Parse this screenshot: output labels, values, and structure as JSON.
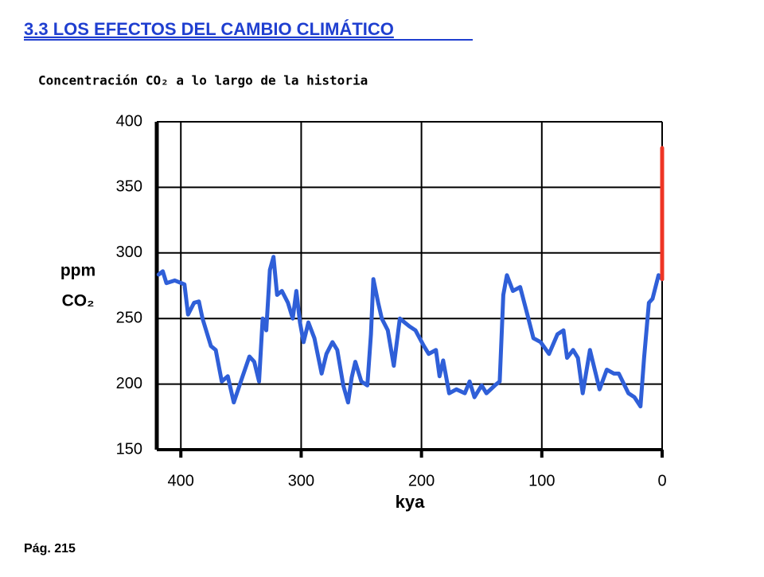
{
  "heading": "3.3 LOS EFECTOS DEL CAMBIO CLIMÁTICO",
  "page_label": "Pág. 215",
  "chart_data": {
    "type": "line",
    "title": "Concentración CO₂ a lo largo de la historia",
    "ylabel": [
      "ppm",
      "CO₂"
    ],
    "xlabel": "kya",
    "xlim": [
      420,
      0
    ],
    "ylim": [
      150,
      400
    ],
    "xticks": [
      400,
      300,
      200,
      100,
      0
    ],
    "yticks": [
      150,
      200,
      250,
      300,
      350,
      400
    ],
    "grid": true,
    "series": [
      {
        "color": "#2f5fd8",
        "x": [
          418.5,
          415,
          412,
          405,
          397,
          394,
          389,
          385,
          382,
          375,
          371,
          366,
          361,
          356,
          349,
          343,
          339,
          335,
          332,
          329,
          326,
          323,
          320,
          316,
          311,
          307,
          304,
          301,
          298,
          294,
          289,
          283,
          279,
          274,
          270,
          265,
          261,
          258,
          255,
          250,
          245,
          242,
          240,
          236,
          233,
          228,
          223,
          218,
          214,
          210,
          205,
          198,
          194,
          188,
          185,
          182,
          177,
          171,
          164,
          160,
          156,
          150,
          146,
          139,
          135,
          132,
          129,
          124,
          118,
          112,
          107,
          101,
          94,
          87,
          82,
          79,
          74,
          70,
          66,
          60,
          56,
          52,
          46,
          40,
          36,
          28,
          23,
          18,
          15,
          11,
          8,
          3,
          0
        ],
        "values": [
          283.5,
          286,
          277,
          279,
          276,
          253,
          262,
          263,
          250,
          229,
          226,
          202,
          206,
          186,
          205,
          221,
          217,
          202,
          250,
          241,
          287,
          297,
          268,
          271,
          262,
          250,
          271,
          247,
          232,
          247,
          235,
          208,
          223,
          232,
          226,
          199,
          186,
          205,
          217,
          202,
          199,
          238,
          280,
          262,
          250,
          241,
          214,
          250,
          247,
          244,
          241,
          229,
          223,
          226,
          206,
          218,
          193,
          196,
          193,
          202,
          190,
          199,
          193,
          199,
          202,
          268,
          283,
          271,
          274,
          253,
          235,
          232,
          223,
          238,
          241,
          220,
          226,
          220,
          193,
          226,
          211,
          196,
          211,
          208,
          208,
          193,
          190,
          183,
          220,
          262,
          265,
          283,
          280
        ]
      },
      {
        "color": "#ee3524",
        "x": [
          0,
          0
        ],
        "values": [
          280,
          380
        ]
      }
    ]
  }
}
